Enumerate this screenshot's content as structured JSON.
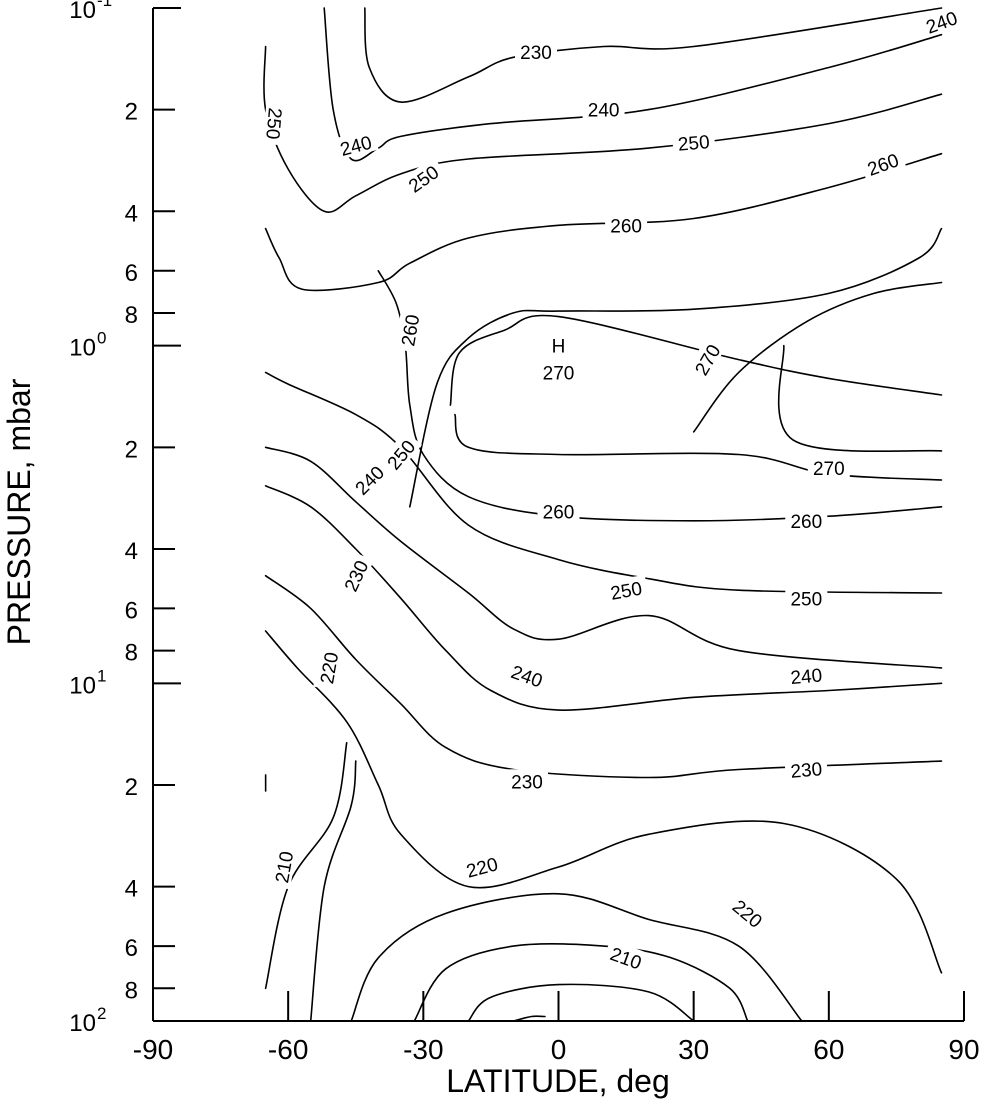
{
  "chart_data": {
    "type": "contour",
    "xlabel": "LATITUDE, deg",
    "ylabel": "PRESSURE, mbar",
    "xlim": [
      -90,
      90
    ],
    "ylim_log10_pressure": [
      -1,
      2
    ],
    "y_scale": "log",
    "y_inverted": true,
    "grid": false,
    "x_ticks": [
      {
        "value": -90,
        "label": "-90"
      },
      {
        "value": -60,
        "label": "-60"
      },
      {
        "value": -30,
        "label": "-30"
      },
      {
        "value": 0,
        "label": "0"
      },
      {
        "value": 30,
        "label": "30"
      },
      {
        "value": 60,
        "label": "60"
      },
      {
        "value": 90,
        "label": "90"
      }
    ],
    "y_ticks": [
      {
        "value": 0.1,
        "label": "10",
        "sup": "-1",
        "major": true
      },
      {
        "value": 0.2,
        "label": "2",
        "sup": "",
        "major": false
      },
      {
        "value": 0.4,
        "label": "4",
        "sup": "",
        "major": false
      },
      {
        "value": 0.6,
        "label": "6",
        "sup": "",
        "major": false
      },
      {
        "value": 0.8,
        "label": "8",
        "sup": "",
        "major": false
      },
      {
        "value": 1,
        "label": "10",
        "sup": "0",
        "major": true
      },
      {
        "value": 2,
        "label": "2",
        "sup": "",
        "major": false
      },
      {
        "value": 4,
        "label": "4",
        "sup": "",
        "major": false
      },
      {
        "value": 6,
        "label": "6",
        "sup": "",
        "major": false
      },
      {
        "value": 8,
        "label": "8",
        "sup": "",
        "major": false
      },
      {
        "value": 10,
        "label": "10",
        "sup": "1",
        "major": true
      },
      {
        "value": 20,
        "label": "2",
        "sup": "",
        "major": false
      },
      {
        "value": 40,
        "label": "4",
        "sup": "",
        "major": false
      },
      {
        "value": 60,
        "label": "6",
        "sup": "",
        "major": false
      },
      {
        "value": 80,
        "label": "8",
        "sup": "",
        "major": false
      },
      {
        "value": 100,
        "label": "10",
        "sup": "2",
        "major": true
      }
    ],
    "contours": [
      {
        "level": 230,
        "points": [
          [
            -43,
            0.1
          ],
          [
            -42,
            0.15
          ],
          [
            -35,
            0.19
          ],
          [
            -20,
            0.16
          ],
          [
            -10,
            0.14
          ],
          [
            10,
            0.13
          ],
          [
            30,
            0.13
          ],
          [
            85,
            0.1
          ]
        ]
      },
      {
        "level": 240,
        "points": [
          [
            -52,
            0.1
          ],
          [
            -50,
            0.2
          ],
          [
            -46,
            0.28
          ],
          [
            -40,
            0.26
          ],
          [
            -35,
            0.24
          ],
          [
            -15,
            0.22
          ],
          [
            20,
            0.2
          ],
          [
            60,
            0.15
          ],
          [
            85,
            0.12
          ]
        ]
      },
      {
        "level": 250,
        "points": [
          [
            -65,
            0.13
          ],
          [
            -65,
            0.2
          ],
          [
            -60,
            0.3
          ],
          [
            -52,
            0.4
          ],
          [
            -45,
            0.36
          ],
          [
            -35,
            0.31
          ],
          [
            -20,
            0.28
          ],
          [
            20,
            0.26
          ],
          [
            60,
            0.22
          ],
          [
            85,
            0.18
          ]
        ]
      },
      {
        "level": 250,
        "points": [
          [
            -65,
            0.45
          ],
          [
            -62,
            0.55
          ],
          [
            -57,
            0.68
          ],
          [
            -40,
            0.65
          ],
          [
            -33,
            0.57
          ],
          [
            -20,
            0.48
          ],
          [
            0,
            0.44
          ],
          [
            30,
            0.42
          ],
          [
            60,
            0.34
          ],
          [
            85,
            0.27
          ]
        ]
      },
      {
        "level": 260,
        "points": [
          [
            -40,
            0.6
          ],
          [
            -36,
            0.75
          ],
          [
            -34,
            1
          ],
          [
            -33,
            1.5
          ],
          [
            -30,
            2.1
          ],
          [
            -20,
            2.8
          ],
          [
            0,
            3.2
          ],
          [
            30,
            3.3
          ],
          [
            60,
            3.2
          ],
          [
            85,
            3
          ]
        ]
      },
      {
        "level": 260,
        "points": [
          [
            -33,
            3
          ],
          [
            -27,
            1.3
          ],
          [
            -20,
            0.95
          ],
          [
            -10,
            0.8
          ],
          [
            0,
            0.79
          ],
          [
            30,
            0.78
          ],
          [
            60,
            0.7
          ],
          [
            80,
            0.55
          ],
          [
            85,
            0.45
          ]
        ]
      },
      {
        "level": 270,
        "points": [
          [
            -24,
            1.5
          ],
          [
            -22,
            1.05
          ],
          [
            -12,
            0.9
          ],
          [
            0,
            0.82
          ],
          [
            40,
            1.1
          ],
          [
            60,
            1.25
          ],
          [
            85,
            1.4
          ]
        ]
      },
      {
        "level": 270,
        "points": [
          [
            -23,
            1.6
          ],
          [
            -20,
            2
          ],
          [
            0,
            2.1
          ],
          [
            40,
            2.1
          ],
          [
            60,
            2.4
          ],
          [
            85,
            2.5
          ]
        ]
      },
      {
        "level": 270,
        "points": [
          [
            30,
            1.8
          ],
          [
            40,
            1.2
          ],
          [
            55,
            0.85
          ],
          [
            70,
            0.7
          ],
          [
            85,
            0.65
          ]
        ]
      },
      {
        "level": 270,
        "points": [
          [
            50,
            1
          ],
          [
            52,
            1.9
          ],
          [
            85,
            2.05
          ]
        ]
      },
      {
        "level": 250,
        "points": [
          [
            -65,
            1.2
          ],
          [
            -60,
            1.3
          ],
          [
            -45,
            1.6
          ],
          [
            -35,
            2
          ],
          [
            -20,
            3.4
          ],
          [
            0,
            4.3
          ],
          [
            20,
            4.9
          ],
          [
            40,
            5.3
          ],
          [
            85,
            5.4
          ]
        ]
      },
      {
        "level": 240,
        "points": [
          [
            -65,
            2
          ],
          [
            -55,
            2.2
          ],
          [
            -45,
            2.9
          ],
          [
            -35,
            3.8
          ],
          [
            -20,
            5.4
          ],
          [
            -10,
            6.9
          ],
          [
            0,
            7.4
          ],
          [
            20,
            6.3
          ],
          [
            40,
            8
          ],
          [
            85,
            9
          ]
        ]
      },
      {
        "level": 230,
        "points": [
          [
            -65,
            2.6
          ],
          [
            -55,
            3
          ],
          [
            -45,
            4
          ],
          [
            -35,
            5.6
          ],
          [
            -25,
            8
          ],
          [
            -15,
            10.5
          ],
          [
            0,
            12
          ],
          [
            30,
            11
          ],
          [
            60,
            10.5
          ],
          [
            85,
            10
          ]
        ]
      },
      {
        "level": 230,
        "points": [
          [
            -65,
            4.8
          ],
          [
            -55,
            6
          ],
          [
            -45,
            8.5
          ],
          [
            -35,
            11.5
          ],
          [
            -25,
            15.5
          ],
          [
            -10,
            18
          ],
          [
            20,
            19
          ],
          [
            40,
            18
          ],
          [
            85,
            17
          ]
        ]
      },
      {
        "level": 220,
        "points": [
          [
            -65,
            7
          ],
          [
            -58,
            9
          ],
          [
            -47,
            13
          ],
          [
            -40,
            20
          ],
          [
            -35,
            28
          ],
          [
            -20,
            40
          ],
          [
            0,
            35
          ],
          [
            20,
            28
          ],
          [
            50,
            26
          ],
          [
            75,
            38
          ],
          [
            85,
            72
          ]
        ]
      },
      {
        "level": 220,
        "points": [
          [
            -46,
            100
          ],
          [
            -40,
            65
          ],
          [
            -25,
            48
          ],
          [
            0,
            42
          ],
          [
            20,
            50
          ],
          [
            40,
            60
          ],
          [
            54,
            100
          ]
        ]
      },
      {
        "level": 210,
        "points": [
          [
            -65,
            80
          ],
          [
            -60,
            40
          ],
          [
            -50,
            25
          ],
          [
            -47,
            15
          ]
        ]
      },
      {
        "level": 210,
        "points": [
          [
            -32,
            100
          ],
          [
            -25,
            70
          ],
          [
            -10,
            60
          ],
          [
            10,
            60
          ],
          [
            25,
            65
          ],
          [
            38,
            80
          ],
          [
            42,
            100
          ]
        ]
      },
      {
        "level": 210,
        "points": [
          [
            -20,
            100
          ],
          [
            -15,
            85
          ],
          [
            0,
            78
          ],
          [
            20,
            82
          ],
          [
            30,
            100
          ]
        ]
      },
      {
        "level": 210,
        "points": [
          [
            -10,
            100
          ],
          [
            -6,
            97
          ],
          [
            -3,
            97
          ]
        ]
      },
      {
        "level": 220,
        "points": [
          [
            -55,
            100
          ],
          [
            -52,
            40
          ],
          [
            -46,
            23
          ],
          [
            -45,
            17
          ]
        ]
      }
    ],
    "contour_labels": [
      {
        "text": "230",
        "x": -5,
        "y": 0.135,
        "rot": 0
      },
      {
        "text": "240",
        "x": 85,
        "y": 0.11,
        "rot": -20
      },
      {
        "text": "240",
        "x": 10,
        "y": 0.2,
        "rot": 0
      },
      {
        "text": "240",
        "x": -45,
        "y": 0.255,
        "rot": -15
      },
      {
        "text": "250",
        "x": 30,
        "y": 0.25,
        "rot": -5
      },
      {
        "text": "250",
        "x": -63,
        "y": 0.22,
        "rot": 95
      },
      {
        "text": "250",
        "x": -30,
        "y": 0.32,
        "rot": -35
      },
      {
        "text": "260",
        "x": 72,
        "y": 0.29,
        "rot": -20
      },
      {
        "text": "260",
        "x": 15,
        "y": 0.44,
        "rot": 0
      },
      {
        "text": "260",
        "x": -33,
        "y": 0.9,
        "rot": -80
      },
      {
        "text": "H",
        "x": 0,
        "y": 1.0,
        "rot": 0
      },
      {
        "text": "270",
        "x": 0,
        "y": 1.2,
        "rot": 0
      },
      {
        "text": "270",
        "x": 33,
        "y": 1.1,
        "rot": -60
      },
      {
        "text": "270",
        "x": 60,
        "y": 2.3,
        "rot": 0
      },
      {
        "text": "260",
        "x": 0,
        "y": 3.1,
        "rot": 0
      },
      {
        "text": "260",
        "x": 55,
        "y": 3.3,
        "rot": 0
      },
      {
        "text": "250",
        "x": -35,
        "y": 2.1,
        "rot": -50
      },
      {
        "text": "250",
        "x": 15,
        "y": 5.3,
        "rot": -10
      },
      {
        "text": "250",
        "x": 55,
        "y": 5.6,
        "rot": 0
      },
      {
        "text": "240",
        "x": -42,
        "y": 2.5,
        "rot": -45
      },
      {
        "text": "240",
        "x": -7,
        "y": 9.5,
        "rot": 20
      },
      {
        "text": "240",
        "x": 55,
        "y": 9.5,
        "rot": -5
      },
      {
        "text": "230",
        "x": -45,
        "y": 4.8,
        "rot": -65
      },
      {
        "text": "230",
        "x": -7,
        "y": 19.5,
        "rot": 0
      },
      {
        "text": "230",
        "x": 55,
        "y": 18,
        "rot": -5
      },
      {
        "text": "220",
        "x": -51,
        "y": 9,
        "rot": -80
      },
      {
        "text": "220",
        "x": -17,
        "y": 35,
        "rot": -15
      },
      {
        "text": "220",
        "x": 42,
        "y": 48,
        "rot": 40
      },
      {
        "text": "210",
        "x": -61,
        "y": 35,
        "rot": -80
      },
      {
        "text": "210",
        "x": 15,
        "y": 65,
        "rot": 20
      }
    ],
    "stray_marks": [
      {
        "x": -65,
        "y": 20
      }
    ]
  }
}
